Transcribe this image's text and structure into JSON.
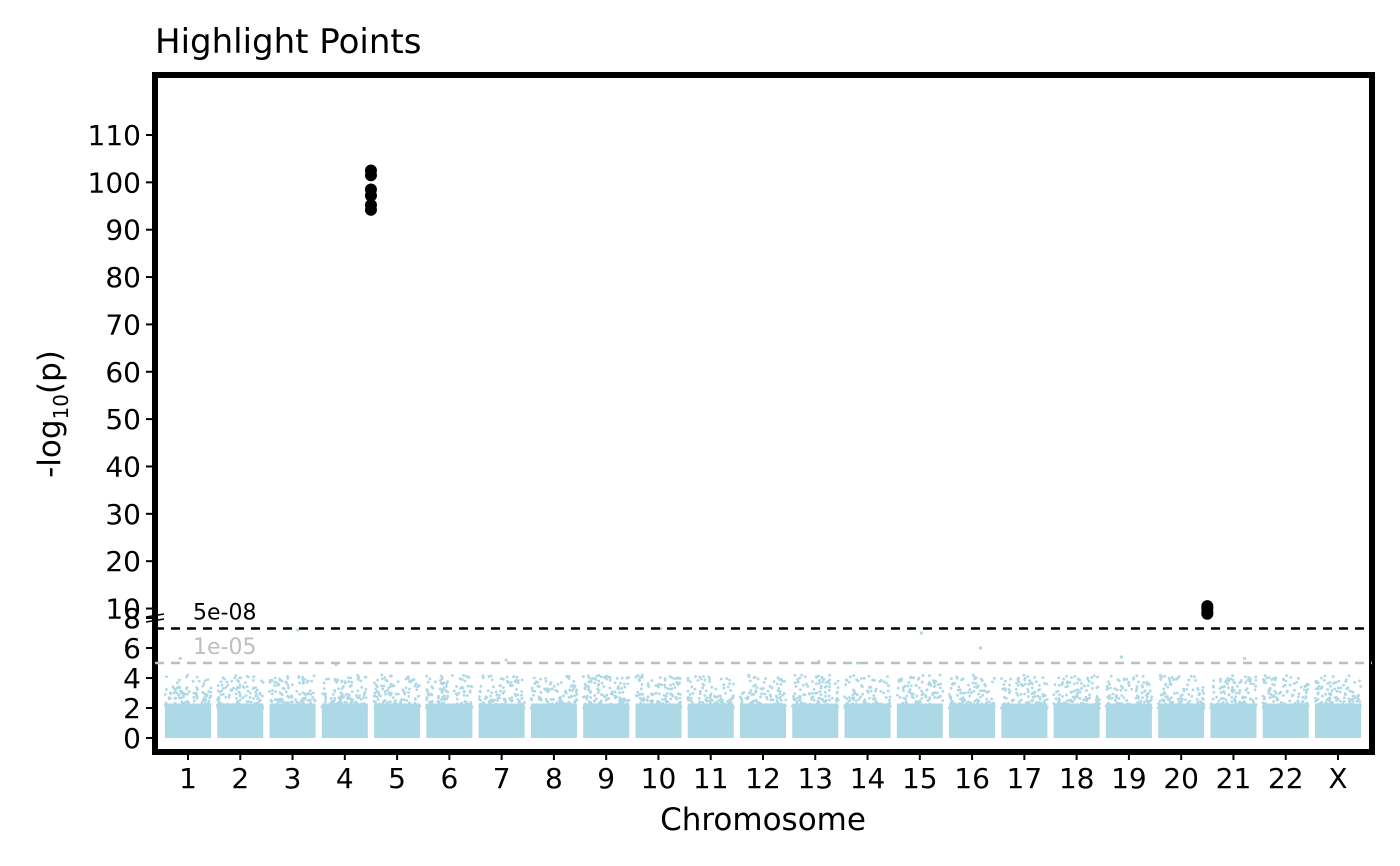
{
  "chart_data": {
    "type": "scatter",
    "title": "Highlight Points",
    "xlabel": "Chromosome",
    "ylabel": {
      "prefix": "-log",
      "subscript": "10",
      "suffix": "(p)"
    },
    "x_categories": [
      "1",
      "2",
      "3",
      "4",
      "5",
      "6",
      "7",
      "8",
      "9",
      "10",
      "11",
      "12",
      "13",
      "14",
      "15",
      "16",
      "17",
      "18",
      "19",
      "20",
      "21",
      "22",
      "X"
    ],
    "y_axis": {
      "type": "broken",
      "lower_ticks": [
        0,
        2,
        4,
        6,
        8
      ],
      "upper_ticks": [
        10,
        20,
        30,
        40,
        50,
        60,
        70,
        80,
        90,
        100,
        110
      ],
      "lower_range": [
        0,
        8
      ],
      "upper_range": [
        8,
        120
      ],
      "break_at": 8
    },
    "thresholds": [
      {
        "value": 7.30103,
        "label": "5e-08",
        "color": "#000000",
        "style": "dashed"
      },
      {
        "value": 5,
        "label": "1e-05",
        "color": "#bebebe",
        "style": "dashed"
      }
    ],
    "background_series": {
      "name": "",
      "color": "#add8e6",
      "description_range": [
        0,
        3.5
      ],
      "notable_points": [
        {
          "chr": "1",
          "y": 5.3
        },
        {
          "chr": "3",
          "y": 7.2
        },
        {
          "chr": "4",
          "y": 4.9
        },
        {
          "chr": "7",
          "y": 5.2
        },
        {
          "chr": "10",
          "y": 7.3
        },
        {
          "chr": "13",
          "y": 5.1
        },
        {
          "chr": "14",
          "y": 5.0
        },
        {
          "chr": "15",
          "y": 7.0
        },
        {
          "chr": "16",
          "y": 6.0
        },
        {
          "chr": "19",
          "y": 5.4
        },
        {
          "chr": "21",
          "y": 5.3
        }
      ]
    },
    "highlighted_points": {
      "color": "#000000",
      "points": [
        {
          "chr_position": "4/5 boundary",
          "y": 102.5
        },
        {
          "chr_position": "4/5 boundary",
          "y": 101.5
        },
        {
          "chr_position": "4/5 boundary",
          "y": 98.5
        },
        {
          "chr_position": "4/5 boundary",
          "y": 97.2
        },
        {
          "chr_position": "4/5 boundary",
          "y": 95.2
        },
        {
          "chr_position": "4/5 boundary",
          "y": 94.2
        },
        {
          "chr_position": "20/21 boundary",
          "y": 10.5
        },
        {
          "chr_position": "20/21 boundary",
          "y": 10.0
        },
        {
          "chr_position": "20/21 boundary",
          "y": 9.3
        },
        {
          "chr_position": "20/21 boundary",
          "y": 8.9
        }
      ]
    }
  }
}
